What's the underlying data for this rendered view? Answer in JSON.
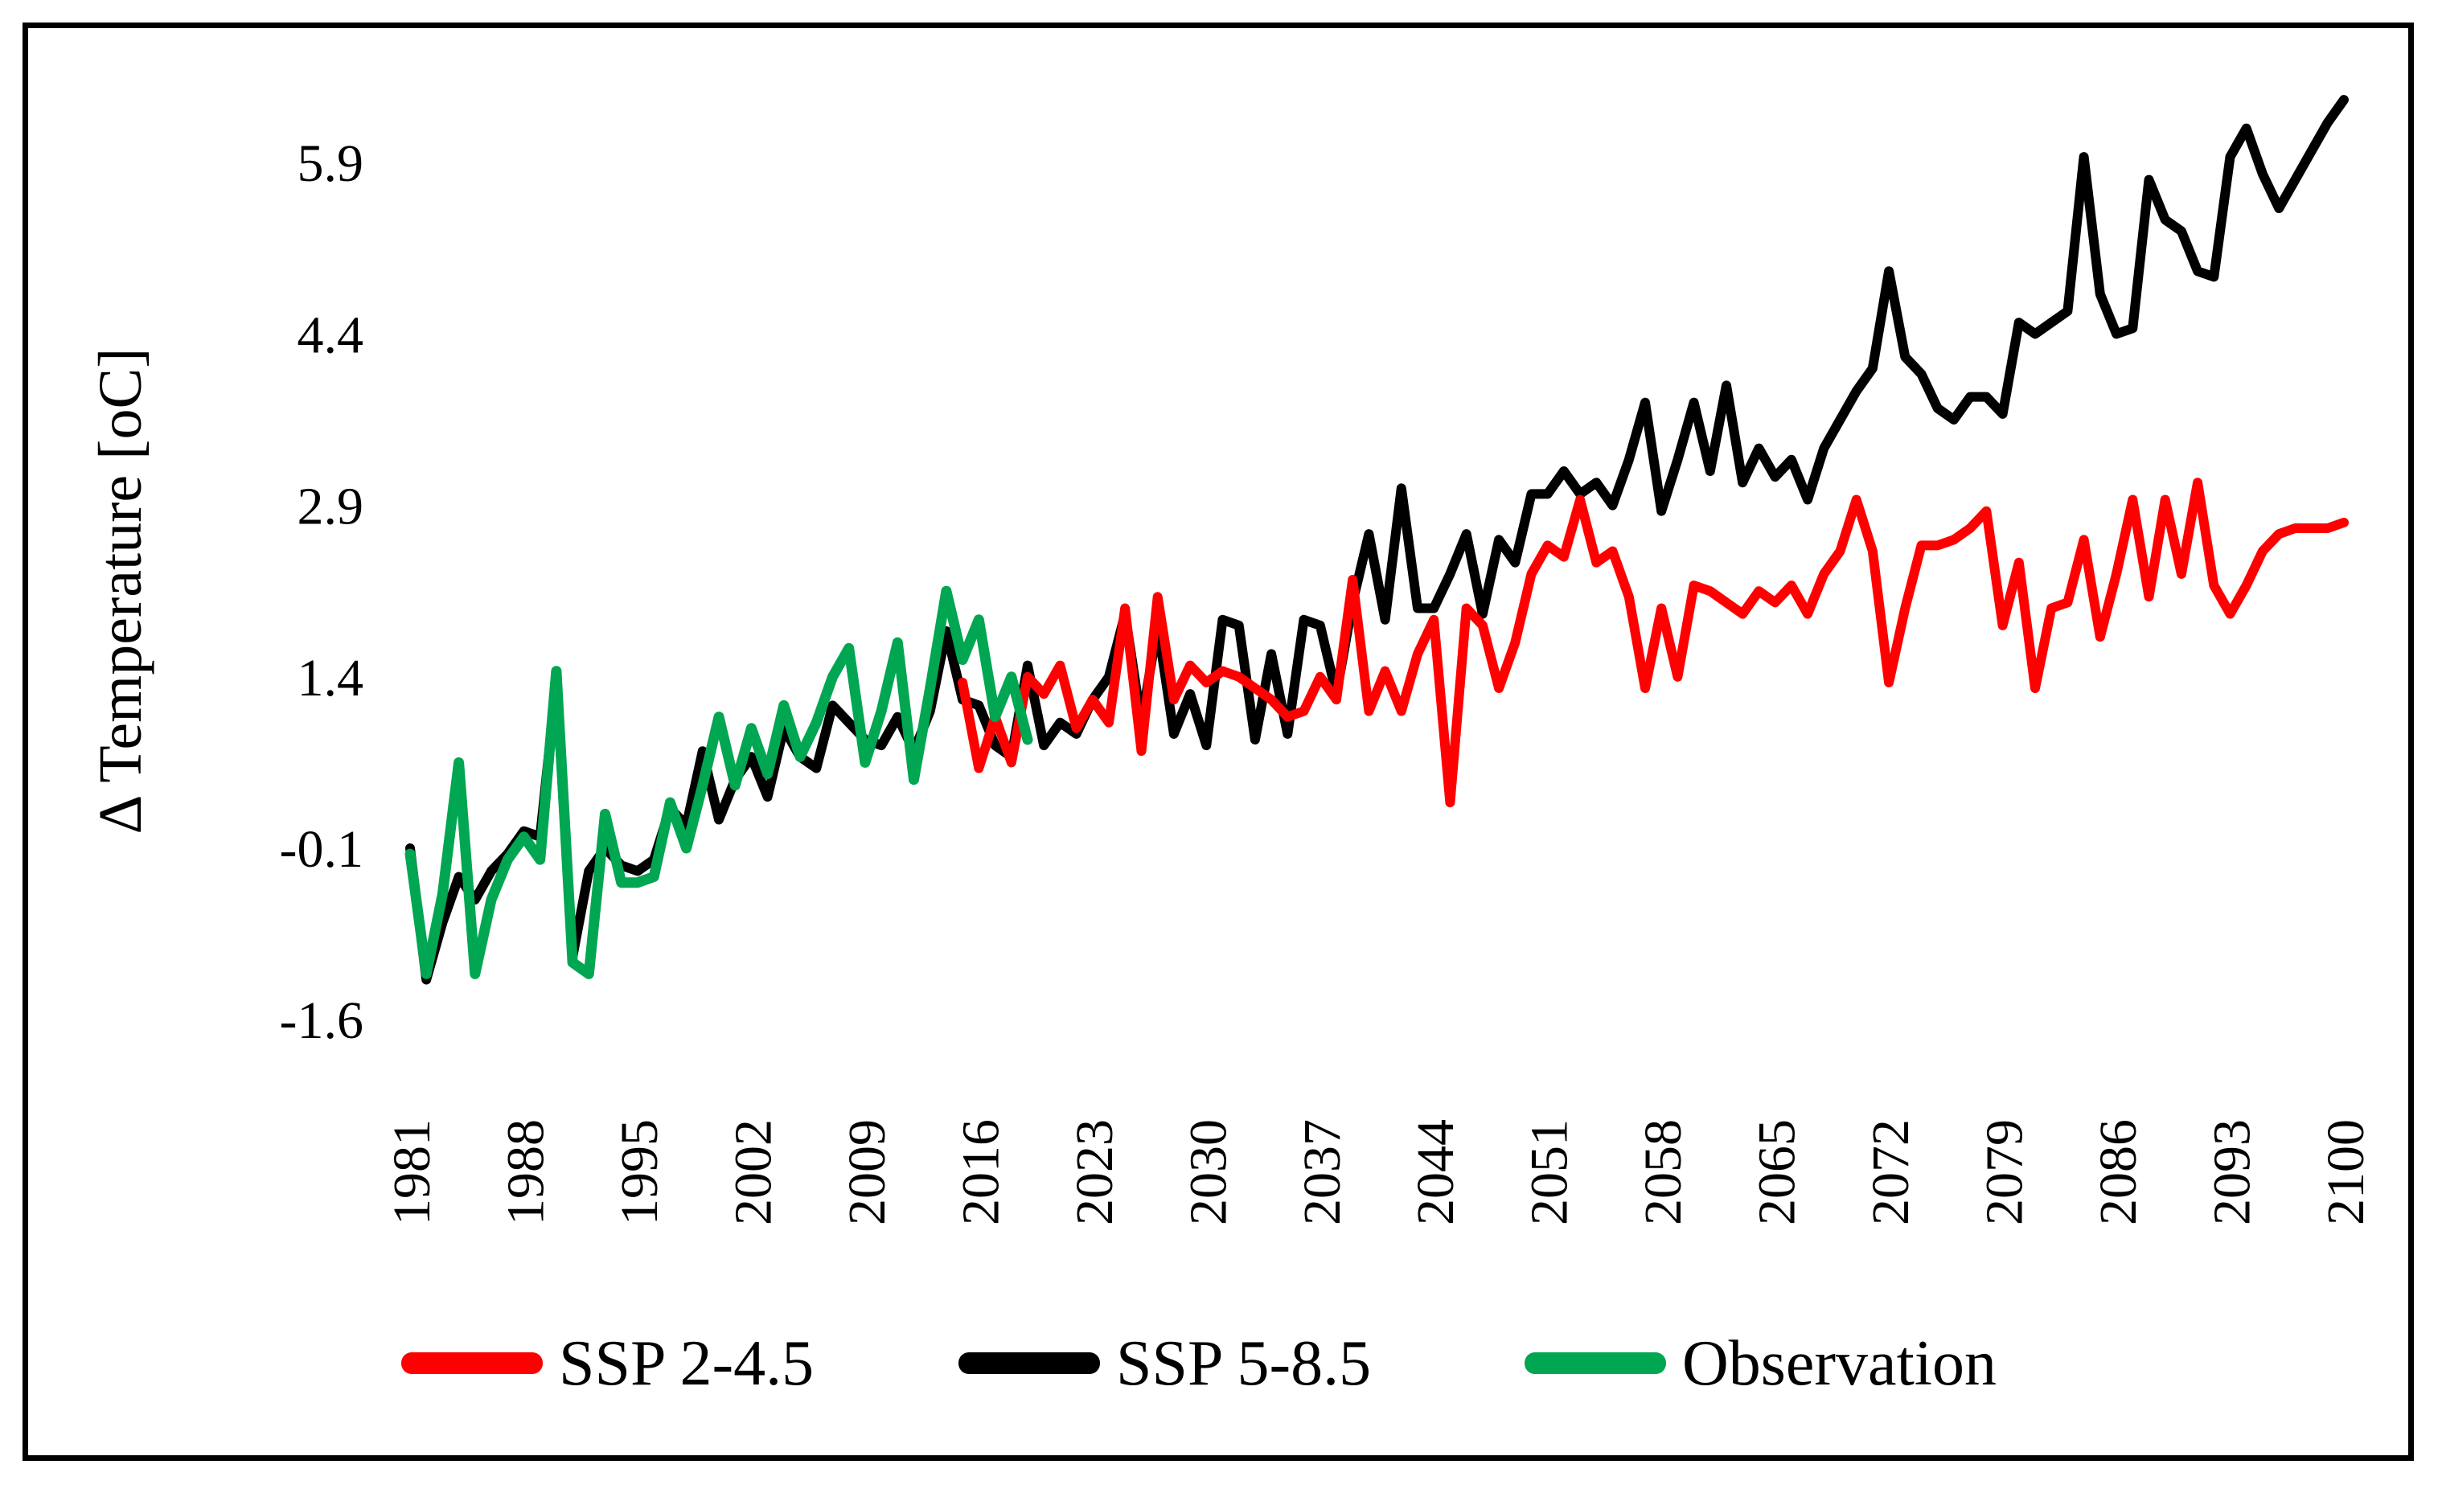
{
  "chart_data": {
    "type": "line",
    "title": "",
    "xlabel": "",
    "ylabel": "Δ Temperature [oC]",
    "legend_position": "bottom",
    "grid": false,
    "ylim": [
      -1.6,
      7.0
    ],
    "xlim": [
      1981,
      2100
    ],
    "y_ticks": [
      "5.9",
      "4.4",
      "2.9",
      "1.4",
      "-0.1",
      "-1.6"
    ],
    "x_ticks": [
      1981,
      1988,
      1995,
      2002,
      2009,
      2016,
      2023,
      2030,
      2037,
      2044,
      2051,
      2058,
      2065,
      2072,
      2079,
      2086,
      2093,
      2100
    ],
    "series": [
      {
        "name": "SSP 2-4.5",
        "color": "#ff0000",
        "start_year": 2015,
        "values": [
          1.35,
          0.6,
          1.05,
          0.65,
          1.4,
          1.25,
          1.5,
          0.95,
          1.2,
          1.0,
          2.0,
          0.75,
          2.1,
          1.2,
          1.5,
          1.35,
          1.45,
          1.4,
          1.3,
          1.2,
          1.05,
          1.1,
          1.4,
          1.2,
          2.25,
          1.1,
          1.45,
          1.1,
          1.6,
          1.9,
          0.3,
          2.0,
          1.85,
          1.3,
          1.7,
          2.3,
          2.55,
          2.45,
          2.95,
          2.4,
          2.5,
          2.1,
          1.3,
          2.0,
          1.4,
          2.2,
          2.15,
          2.05,
          1.95,
          2.15,
          2.05,
          2.2,
          1.95,
          2.3,
          2.5,
          2.95,
          2.5,
          1.35,
          2.0,
          2.55,
          2.55,
          2.6,
          2.7,
          2.85,
          1.85,
          2.4,
          1.3,
          2.0,
          2.05,
          2.6,
          1.75,
          2.3,
          2.95,
          2.1,
          2.95,
          2.3,
          3.1,
          2.2,
          1.95,
          2.2,
          2.5,
          2.65,
          2.7,
          2.7,
          2.7,
          2.75
        ]
      },
      {
        "name": "SSP 5-8.5",
        "color": "#000000",
        "start_year": 1981,
        "values": [
          -0.1,
          -1.25,
          -0.75,
          -0.35,
          -0.55,
          -0.3,
          -0.15,
          0.05,
          0.0,
          1.35,
          -1.05,
          -0.3,
          -0.1,
          -0.25,
          -0.3,
          -0.2,
          0.25,
          0.1,
          0.75,
          0.15,
          0.5,
          0.7,
          0.35,
          0.95,
          0.7,
          0.6,
          1.15,
          1.0,
          0.85,
          0.8,
          1.05,
          0.75,
          1.1,
          1.8,
          1.2,
          1.15,
          0.8,
          0.7,
          1.5,
          0.8,
          1.0,
          0.9,
          1.2,
          1.4,
          1.95,
          1.0,
          1.85,
          0.9,
          1.25,
          0.8,
          1.9,
          1.85,
          0.85,
          1.6,
          0.9,
          1.9,
          1.85,
          1.25,
          2.05,
          2.65,
          1.9,
          3.05,
          2.0,
          2.0,
          2.3,
          2.65,
          1.95,
          2.6,
          2.4,
          3.0,
          3.0,
          3.2,
          3.0,
          3.1,
          2.9,
          3.3,
          3.8,
          2.85,
          3.3,
          3.8,
          3.2,
          3.95,
          3.1,
          3.4,
          3.15,
          3.3,
          2.95,
          3.4,
          3.65,
          3.9,
          4.1,
          4.95,
          4.2,
          4.05,
          3.75,
          3.65,
          3.85,
          3.85,
          3.7,
          4.5,
          4.4,
          4.5,
          4.6,
          5.95,
          4.75,
          4.4,
          4.45,
          5.75,
          5.4,
          5.3,
          4.95,
          4.9,
          5.95,
          6.2,
          5.8,
          5.5,
          5.75,
          6.0,
          6.25,
          6.45
        ]
      },
      {
        "name": "Observation",
        "color": "#00a651",
        "start_year": 1981,
        "values": [
          -0.15,
          -1.2,
          -0.5,
          0.65,
          -1.2,
          -0.55,
          -0.2,
          0.0,
          -0.2,
          1.45,
          -1.1,
          -1.2,
          0.2,
          -0.4,
          -0.4,
          -0.35,
          0.3,
          -0.1,
          0.45,
          1.05,
          0.45,
          0.95,
          0.55,
          1.15,
          0.7,
          1.0,
          1.4,
          1.65,
          0.65,
          1.1,
          1.7,
          0.5,
          1.3,
          2.15,
          1.55,
          1.9,
          1.05,
          1.4,
          0.85
        ]
      }
    ]
  }
}
